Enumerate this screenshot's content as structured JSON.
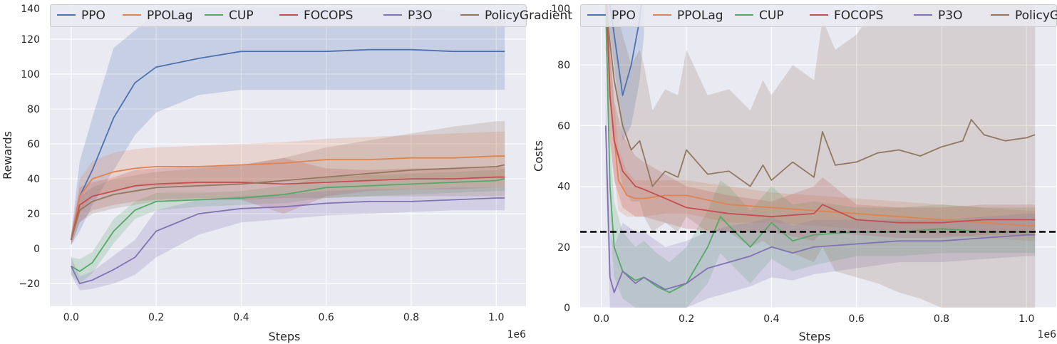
{
  "chart_data": [
    {
      "type": "line",
      "xlabel": "Steps",
      "ylabel": "Rewards",
      "x_offset_text": "1e6",
      "xlim": [
        -0.05,
        1.07
      ],
      "ylim": [
        -33,
        140
      ],
      "xticks": [
        0.0,
        0.2,
        0.4,
        0.6,
        0.8,
        1.0
      ],
      "xtick_labels": [
        "0.0",
        "0.2",
        "0.4",
        "0.6",
        "0.8",
        "1.0"
      ],
      "yticks": [
        -20,
        0,
        20,
        40,
        60,
        80,
        100,
        120,
        140
      ],
      "ytick_labels": [
        "−20",
        "0",
        "20",
        "40",
        "60",
        "80",
        "100",
        "120",
        "140"
      ],
      "grid": true,
      "legend": "top",
      "x": [
        0.0,
        0.02,
        0.05,
        0.1,
        0.15,
        0.2,
        0.3,
        0.4,
        0.5,
        0.6,
        0.7,
        0.8,
        0.9,
        1.0,
        1.02
      ],
      "series": [
        {
          "name": "PPO",
          "color": "#4c72b0",
          "values": [
            5,
            30,
            45,
            75,
            95,
            104,
            109,
            113,
            113,
            113,
            114,
            114,
            113,
            113,
            113
          ],
          "lower": [
            2,
            10,
            25,
            45,
            65,
            78,
            88,
            91,
            91,
            91,
            91,
            91,
            91,
            91,
            91
          ],
          "upper": [
            8,
            50,
            75,
            115,
            125,
            135,
            138,
            138,
            138,
            138,
            138,
            138,
            136,
            134,
            134
          ]
        },
        {
          "name": "PPOLag",
          "color": "#dd8452",
          "values": [
            5,
            30,
            40,
            44,
            46,
            47,
            47,
            48,
            49,
            51,
            51,
            52,
            52,
            53,
            53
          ],
          "lower": [
            2,
            20,
            30,
            33,
            35,
            36,
            36,
            37,
            38,
            39,
            39,
            40,
            40,
            40,
            40
          ],
          "upper": [
            8,
            40,
            50,
            55,
            57,
            58,
            59,
            60,
            61,
            63,
            64,
            65,
            66,
            67,
            67
          ]
        },
        {
          "name": "CUP",
          "color": "#55a868",
          "values": [
            -10,
            -13,
            -8,
            10,
            22,
            27,
            28,
            29,
            31,
            35,
            36,
            37,
            38,
            39,
            40
          ],
          "lower": [
            -15,
            -20,
            -14,
            3,
            17,
            22,
            24,
            25,
            26,
            29,
            30,
            31,
            32,
            33,
            33
          ],
          "upper": [
            -5,
            -6,
            -2,
            17,
            27,
            32,
            32,
            33,
            36,
            41,
            42,
            43,
            44,
            45,
            46
          ]
        },
        {
          "name": "FOCOPS",
          "color": "#c44e52",
          "values": [
            5,
            25,
            30,
            33,
            36,
            37,
            38,
            38,
            37,
            38,
            39,
            40,
            40,
            41,
            41
          ],
          "lower": [
            2,
            15,
            22,
            25,
            27,
            28,
            29,
            28,
            20,
            30,
            33,
            34,
            34,
            35,
            35
          ],
          "upper": [
            8,
            35,
            38,
            41,
            45,
            46,
            47,
            48,
            52,
            46,
            45,
            46,
            46,
            47,
            47
          ]
        },
        {
          "name": "P3O",
          "color": "#8172b3",
          "values": [
            -10,
            -20,
            -18,
            -12,
            -5,
            10,
            20,
            23,
            24,
            26,
            27,
            27,
            28,
            29,
            29
          ],
          "lower": [
            -15,
            -24,
            -23,
            -20,
            -15,
            -5,
            8,
            15,
            17,
            19,
            20,
            21,
            22,
            22,
            22
          ],
          "upper": [
            -5,
            -16,
            -13,
            -4,
            5,
            22,
            28,
            30,
            31,
            33,
            34,
            34,
            35,
            35,
            35
          ]
        },
        {
          "name": "PolicyGradient",
          "color": "#937860",
          "values": [
            5,
            22,
            27,
            31,
            33,
            35,
            36,
            37,
            39,
            41,
            43,
            45,
            46,
            47,
            48
          ],
          "lower": [
            2,
            15,
            20,
            23,
            25,
            27,
            28,
            28,
            29,
            29,
            30,
            30,
            30,
            30,
            30
          ],
          "upper": [
            8,
            30,
            35,
            40,
            42,
            44,
            46,
            48,
            52,
            58,
            62,
            66,
            70,
            73,
            73
          ]
        }
      ]
    },
    {
      "type": "line",
      "xlabel": "Steps",
      "ylabel": "Costs",
      "x_offset_text": "1e6",
      "xlim": [
        -0.05,
        1.07
      ],
      "ylim": [
        0,
        100
      ],
      "xticks": [
        0.0,
        0.2,
        0.4,
        0.6,
        0.8,
        1.0
      ],
      "xtick_labels": [
        "0.0",
        "0.2",
        "0.4",
        "0.6",
        "0.8",
        "1.0"
      ],
      "yticks": [
        0,
        20,
        40,
        60,
        80,
        100
      ],
      "ytick_labels": [
        "0",
        "20",
        "40",
        "60",
        "80",
        "100"
      ],
      "grid": true,
      "legend": "top",
      "threshold": 25,
      "series": [
        {
          "name": "PPO",
          "color": "#4c72b0",
          "x": [
            0.01,
            0.03,
            0.05,
            0.07,
            0.09,
            0.1
          ],
          "values": [
            110,
            90,
            70,
            80,
            95,
            110
          ],
          "lower": [
            100,
            80,
            55,
            60,
            75,
            90
          ],
          "upper": [
            120,
            110,
            100,
            110,
            115,
            120
          ]
        },
        {
          "name": "PPOLag",
          "color": "#dd8452",
          "x": [
            0.01,
            0.02,
            0.04,
            0.06,
            0.08,
            0.1,
            0.15,
            0.2,
            0.3,
            0.4,
            0.5,
            0.6,
            0.7,
            0.8,
            0.9,
            1.0,
            1.02
          ],
          "values": [
            110,
            70,
            42,
            37,
            36,
            36,
            37,
            37,
            34,
            33,
            32,
            31,
            30,
            29,
            28,
            27,
            27
          ],
          "lower": [
            100,
            55,
            32,
            30,
            30,
            30,
            31,
            31,
            28,
            28,
            27,
            26,
            25,
            24,
            23,
            22,
            22
          ],
          "upper": [
            120,
            85,
            52,
            45,
            42,
            42,
            42,
            42,
            40,
            38,
            37,
            36,
            35,
            34,
            33,
            32,
            32
          ]
        },
        {
          "name": "CUP",
          "color": "#55a868",
          "x": [
            0.01,
            0.02,
            0.03,
            0.05,
            0.08,
            0.1,
            0.13,
            0.16,
            0.2,
            0.25,
            0.28,
            0.3,
            0.35,
            0.4,
            0.45,
            0.5,
            0.6,
            0.7,
            0.8,
            0.9,
            1.0,
            1.02
          ],
          "values": [
            100,
            40,
            20,
            12,
            9,
            10,
            7,
            5,
            8,
            20,
            30,
            27,
            20,
            28,
            22,
            24,
            25,
            25,
            26,
            25,
            25,
            25
          ],
          "lower": [
            90,
            28,
            10,
            3,
            0,
            0,
            0,
            0,
            0,
            8,
            18,
            15,
            8,
            16,
            12,
            14,
            17,
            17,
            18,
            18,
            18,
            18
          ],
          "upper": [
            110,
            55,
            35,
            25,
            20,
            22,
            18,
            15,
            20,
            32,
            42,
            40,
            32,
            40,
            34,
            35,
            33,
            33,
            34,
            33,
            33,
            33
          ]
        },
        {
          "name": "FOCOPS",
          "color": "#c44e52",
          "x": [
            0.01,
            0.02,
            0.03,
            0.05,
            0.08,
            0.1,
            0.15,
            0.2,
            0.3,
            0.4,
            0.5,
            0.52,
            0.6,
            0.7,
            0.8,
            0.9,
            1.0,
            1.02
          ],
          "values": [
            110,
            70,
            55,
            45,
            40,
            39,
            36,
            33,
            31,
            30,
            31,
            34,
            29,
            28,
            28,
            29,
            29,
            29
          ],
          "lower": [
            100,
            55,
            42,
            33,
            30,
            30,
            28,
            26,
            25,
            25,
            22,
            25,
            24,
            23,
            23,
            24,
            24,
            24
          ],
          "upper": [
            120,
            85,
            68,
            57,
            50,
            48,
            44,
            40,
            37,
            35,
            40,
            43,
            34,
            33,
            33,
            34,
            34,
            34
          ]
        },
        {
          "name": "P3O",
          "color": "#8172b3",
          "x": [
            0.01,
            0.02,
            0.03,
            0.05,
            0.08,
            0.1,
            0.15,
            0.2,
            0.25,
            0.3,
            0.35,
            0.4,
            0.45,
            0.5,
            0.6,
            0.7,
            0.8,
            0.9,
            1.0,
            1.02
          ],
          "values": [
            60,
            10,
            5,
            12,
            8,
            10,
            6,
            8,
            13,
            15,
            17,
            20,
            18,
            20,
            21,
            22,
            22,
            23,
            24,
            24
          ],
          "lower": [
            45,
            0,
            0,
            0,
            0,
            0,
            0,
            0,
            3,
            5,
            7,
            10,
            9,
            11,
            13,
            15,
            15,
            16,
            17,
            17
          ],
          "upper": [
            75,
            25,
            20,
            28,
            25,
            25,
            20,
            22,
            25,
            27,
            28,
            30,
            27,
            29,
            29,
            29,
            29,
            30,
            31,
            31
          ]
        },
        {
          "name": "PolicyGradient",
          "color": "#937860",
          "x": [
            0.01,
            0.03,
            0.05,
            0.07,
            0.09,
            0.1,
            0.12,
            0.15,
            0.18,
            0.2,
            0.25,
            0.3,
            0.35,
            0.38,
            0.4,
            0.45,
            0.5,
            0.52,
            0.55,
            0.6,
            0.65,
            0.7,
            0.75,
            0.8,
            0.85,
            0.87,
            0.9,
            0.95,
            1.0,
            1.02
          ],
          "values": [
            100,
            75,
            60,
            52,
            55,
            50,
            40,
            45,
            43,
            52,
            44,
            45,
            40,
            47,
            42,
            48,
            43,
            58,
            47,
            48,
            51,
            52,
            50,
            53,
            55,
            62,
            57,
            55,
            56,
            57
          ],
          "lower": [
            85,
            55,
            40,
            35,
            35,
            30,
            25,
            28,
            25,
            30,
            25,
            25,
            20,
            22,
            20,
            18,
            15,
            20,
            12,
            10,
            8,
            5,
            3,
            0,
            0,
            0,
            0,
            0,
            0,
            0
          ],
          "upper": [
            115,
            100,
            90,
            80,
            85,
            80,
            65,
            72,
            70,
            85,
            70,
            72,
            65,
            75,
            70,
            80,
            75,
            95,
            85,
            90,
            100,
            100,
            100,
            100,
            100,
            100,
            100,
            100,
            100,
            100
          ]
        }
      ]
    }
  ]
}
